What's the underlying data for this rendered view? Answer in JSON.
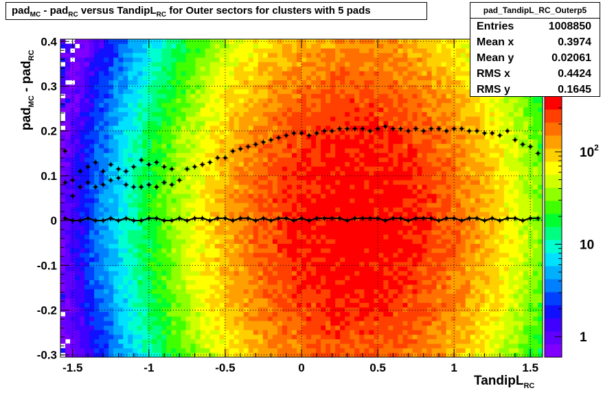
{
  "title": {
    "t1": "pad",
    "s1": "MC",
    "t2": " - pad",
    "s2": "RC",
    "t3": " versus TandipL",
    "s3": "RC",
    "t4": " for Outer sectors for clusters with 5 pads"
  },
  "stats": {
    "name": "pad_TandipL_RC_Outerp5",
    "rows": [
      {
        "label": "Entries",
        "value": "1008850"
      },
      {
        "label": "Mean x",
        "value": "0.3974"
      },
      {
        "label": "Mean y",
        "value": "0.02061"
      },
      {
        "label": "RMS x",
        "value": "0.4424"
      },
      {
        "label": "RMS y",
        "value": "0.1645"
      }
    ]
  },
  "axes": {
    "x_label_main": "TandipL",
    "x_label_sub": "RC",
    "y_label_a": "pad",
    "y_sub_a": "MC",
    "y_label_b": " - pad",
    "y_sub_b": "RC"
  },
  "chart_data": {
    "type": "heatmap",
    "xlim": [
      -1.58,
      1.58
    ],
    "ylim": [
      -0.305,
      0.405
    ],
    "x_ticks": [
      {
        "v": -1.5,
        "label": "-1.5"
      },
      {
        "v": -1,
        "label": "-1"
      },
      {
        "v": -0.5,
        "label": "-0.5"
      },
      {
        "v": 0,
        "label": "0"
      },
      {
        "v": 0.5,
        "label": "0.5"
      },
      {
        "v": 1,
        "label": "1"
      },
      {
        "v": 1.5,
        "label": "1.5"
      }
    ],
    "y_ticks": [
      {
        "v": -0.3,
        "label": "-0.3"
      },
      {
        "v": -0.2,
        "label": "-0.2"
      },
      {
        "v": -0.1,
        "label": "-0.1"
      },
      {
        "v": 0,
        "label": "0"
      },
      {
        "v": 0.1,
        "label": "0.1"
      },
      {
        "v": 0.2,
        "label": "0.2"
      },
      {
        "v": 0.3,
        "label": "0.3"
      },
      {
        "v": 0.4,
        "label": "0.4"
      }
    ],
    "z_log": true,
    "z_range": [
      0.6,
      400
    ],
    "z_ticks": [
      {
        "v": 1,
        "label": "1"
      },
      {
        "v": 10,
        "label": "10"
      },
      {
        "v": 100,
        "label": "10",
        "sup": "2"
      }
    ],
    "colors": [
      "#8000ff",
      "#6000ff",
      "#4000ff",
      "#1010ff",
      "#0040ff",
      "#0080ff",
      "#00b0ff",
      "#00e0ff",
      "#00ffd0",
      "#00ff80",
      "#00ff30",
      "#40ff00",
      "#90ff00",
      "#d0ff00",
      "#ffff00",
      "#ffd000",
      "#ffa000",
      "#ff7000",
      "#ff4000",
      "#ff0000"
    ],
    "peak": {
      "x": 0.35,
      "y": 0.0,
      "sx": 0.55,
      "sy": 0.28,
      "amp": 380
    },
    "mean_profile": {
      "x": [
        -1.55,
        -1.5,
        -1.45,
        -1.4,
        -1.35,
        -1.3,
        -1.25,
        -1.2,
        -1.15,
        -1.1,
        -1.05,
        -1.0,
        -0.95,
        -0.9,
        -0.85,
        -0.8,
        -0.75,
        -0.7,
        -0.65,
        -0.6,
        -0.55,
        -0.5,
        -0.45,
        -0.4,
        -0.35,
        -0.3,
        -0.25,
        -0.2,
        -0.15,
        -0.1,
        -0.05,
        0.0,
        0.05,
        0.1,
        0.15,
        0.2,
        0.25,
        0.3,
        0.35,
        0.4,
        0.45,
        0.5,
        0.55,
        0.6,
        0.65,
        0.7,
        0.75,
        0.8,
        0.85,
        0.9,
        0.95,
        1.0,
        1.05,
        1.1,
        1.15,
        1.2,
        1.25,
        1.3,
        1.35,
        1.4,
        1.45,
        1.5,
        1.55
      ],
      "y": [
        0.005,
        0.0,
        0.0,
        0.005,
        0.0,
        0.0,
        0.005,
        0.0,
        0.005,
        0.0,
        0.0,
        0.005,
        0.005,
        0.0,
        0.0,
        0.005,
        0.0,
        0.005,
        0.005,
        0.0,
        0.005,
        0.005,
        0.0,
        0.005,
        0.005,
        0.0,
        0.005,
        0.0,
        0.005,
        0.005,
        0.0,
        0.005,
        0.0,
        0.005,
        0.005,
        0.005,
        0.005,
        0.0,
        0.005,
        0.005,
        0.005,
        0.005,
        0.0,
        0.005,
        0.005,
        0.0,
        0.005,
        0.005,
        0.005,
        0.0,
        0.005,
        0.005,
        0.0,
        0.005,
        0.005,
        0.0,
        0.005,
        0.0,
        0.005,
        0.005,
        0.0,
        0.005,
        0.005
      ]
    },
    "rms_upper": {
      "x": [
        -1.55,
        -1.5,
        -1.45,
        -1.4,
        -1.35,
        -1.3,
        -1.25,
        -1.2,
        -1.15,
        -1.1,
        -1.05,
        -1.0,
        -0.95,
        -0.9,
        -0.85,
        -0.8,
        -0.75,
        -0.7,
        -0.65,
        -0.6,
        -0.55,
        -0.5,
        -0.45,
        -0.4,
        -0.35,
        -0.3,
        -0.25,
        -0.2,
        -0.15,
        -0.1,
        -0.05,
        0.0,
        0.05,
        0.1,
        0.15,
        0.2,
        0.25,
        0.3,
        0.35,
        0.4,
        0.45,
        0.5,
        0.55,
        0.6,
        0.65,
        0.7,
        0.75,
        0.8,
        0.85,
        0.9,
        0.95,
        1.0,
        1.05,
        1.1,
        1.15,
        1.2,
        1.25,
        1.3,
        1.35,
        1.4,
        1.45,
        1.5,
        1.55
      ],
      "y": [
        0.155,
        0.09,
        0.11,
        0.12,
        0.13,
        0.11,
        0.125,
        0.115,
        0.11,
        0.12,
        0.135,
        0.125,
        0.13,
        0.12,
        0.115,
        0.09,
        0.115,
        0.12,
        0.125,
        0.13,
        0.14,
        0.14,
        0.155,
        0.16,
        0.165,
        0.17,
        0.175,
        0.18,
        0.185,
        0.19,
        0.195,
        0.195,
        0.19,
        0.195,
        0.2,
        0.2,
        0.205,
        0.205,
        0.205,
        0.205,
        0.2,
        0.205,
        0.21,
        0.205,
        0.205,
        0.2,
        0.205,
        0.2,
        0.205,
        0.205,
        0.2,
        0.205,
        0.205,
        0.2,
        0.2,
        0.195,
        0.195,
        0.19,
        0.2,
        0.18,
        0.17,
        0.165,
        0.15
      ]
    },
    "rms_lower": {
      "x": [
        -1.55,
        -1.5,
        -1.45,
        -1.4,
        -1.35,
        -1.3,
        -1.25,
        -1.2,
        -1.15,
        -1.1,
        -1.05,
        -1.0,
        -0.95,
        -0.9,
        -0.85
      ],
      "y": [
        0.085,
        0.055,
        0.075,
        0.085,
        0.075,
        0.08,
        0.09,
        0.095,
        0.08,
        0.075,
        0.075,
        0.08,
        0.075,
        0.085,
        0.08
      ]
    }
  }
}
